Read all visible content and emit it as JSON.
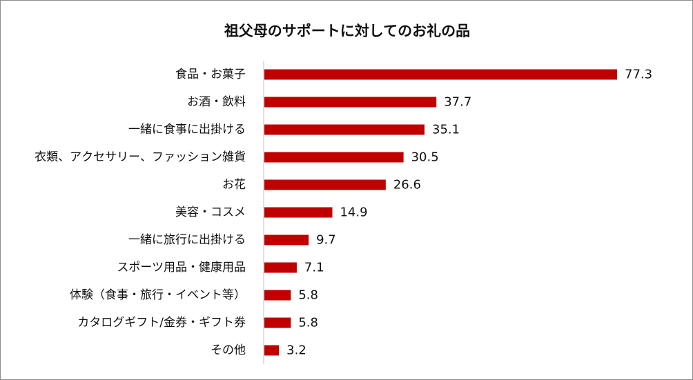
{
  "chart_data": {
    "type": "bar",
    "orientation": "horizontal",
    "title": "祖父母のサポートに対してのお礼の品",
    "categories": [
      "食品・お菓子",
      "お酒・飲料",
      "一緒に食事に出掛ける",
      "衣類、アクセサリー、ファッション雑貨",
      "お花",
      "美容・コスメ",
      "一緒に旅行に出掛ける",
      "スポーツ用品・健康用品",
      "体験（食事・旅行・イベント等）",
      "カタログギフト/金券・ギフト券",
      "その他"
    ],
    "values": [
      77.3,
      37.7,
      35.1,
      30.5,
      26.6,
      14.9,
      9.7,
      7.1,
      5.8,
      5.8,
      3.2
    ],
    "value_labels": [
      "77.3",
      "37.7",
      "35.1",
      "30.5",
      "26.6",
      "14.9",
      "9.7",
      "7.1",
      "5.8",
      "5.8",
      "3.2"
    ],
    "xlim": [
      0,
      77.3
    ],
    "grid": false,
    "legend": "none",
    "bar_color": "#c00000"
  }
}
